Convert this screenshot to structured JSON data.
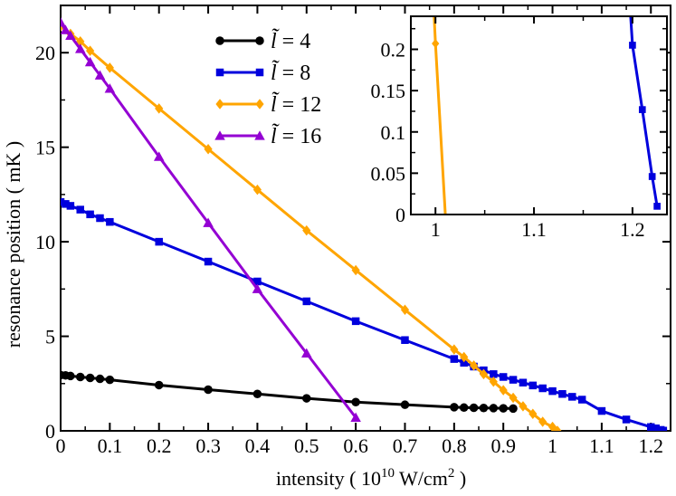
{
  "chart_data": [
    {
      "type": "line",
      "xlabel": "intensity ( 10^10 W/cm^2 )",
      "xlabel_parts": {
        "pre": "intensity ( 10",
        "exp1": "10",
        "mid": " W/cm",
        "exp2": "2",
        "post": " )"
      },
      "ylabel": "resonance position ( mK )",
      "xlim": [
        0,
        1.24
      ],
      "ylim": [
        0,
        22.5
      ],
      "xticks": [
        "0",
        "0.1",
        "0.2",
        "0.3",
        "0.4",
        "0.5",
        "0.6",
        "0.7",
        "0.8",
        "0.9",
        "1",
        "1.1",
        "1.2"
      ],
      "xtick_values": [
        0,
        0.1,
        0.2,
        0.3,
        0.4,
        0.5,
        0.6,
        0.7,
        0.8,
        0.9,
        1.0,
        1.1,
        1.2
      ],
      "yticks": [
        "0",
        "5",
        "10",
        "15",
        "20"
      ],
      "ytick_values": [
        0,
        5,
        10,
        15,
        20
      ],
      "legend": "top-center",
      "series": [
        {
          "name": "l̃ = 4",
          "legend_symbol": "l̃",
          "legend_value": "= 4",
          "color": "#000000",
          "marker": "circle",
          "x": [
            0,
            0.01,
            0.02,
            0.04,
            0.06,
            0.08,
            0.1,
            0.2,
            0.3,
            0.4,
            0.5,
            0.6,
            0.7,
            0.8,
            0.82,
            0.84,
            0.86,
            0.88,
            0.9,
            0.92
          ],
          "y": [
            2.95,
            2.93,
            2.9,
            2.85,
            2.8,
            2.75,
            2.7,
            2.42,
            2.18,
            1.95,
            1.72,
            1.52,
            1.38,
            1.25,
            1.23,
            1.22,
            1.21,
            1.2,
            1.19,
            1.18
          ]
        },
        {
          "name": "l̃ = 8",
          "legend_symbol": "l̃",
          "legend_value": "= 8",
          "color": "#0000dd",
          "marker": "square",
          "x": [
            0,
            0.01,
            0.02,
            0.04,
            0.06,
            0.08,
            0.1,
            0.2,
            0.3,
            0.4,
            0.5,
            0.6,
            0.7,
            0.8,
            0.82,
            0.84,
            0.86,
            0.88,
            0.9,
            0.92,
            0.94,
            0.96,
            0.98,
            1.0,
            1.02,
            1.04,
            1.06,
            1.1,
            1.15,
            1.2,
            1.21,
            1.22,
            1.225
          ],
          "y": [
            12.1,
            12.0,
            11.9,
            11.7,
            11.45,
            11.25,
            11.05,
            10.0,
            8.95,
            7.9,
            6.85,
            5.8,
            4.8,
            3.8,
            3.6,
            3.4,
            3.2,
            3.0,
            2.85,
            2.7,
            2.55,
            2.4,
            2.25,
            2.1,
            1.95,
            1.8,
            1.65,
            1.05,
            0.6,
            0.2,
            0.13,
            0.05,
            0.01
          ]
        },
        {
          "name": "l̃ = 12",
          "legend_symbol": "l̃",
          "legend_value": "= 12",
          "color": "#ffa500",
          "marker": "diamond",
          "x": [
            0,
            0.02,
            0.04,
            0.06,
            0.1,
            0.2,
            0.3,
            0.4,
            0.5,
            0.6,
            0.7,
            0.8,
            0.82,
            0.84,
            0.86,
            0.88,
            0.9,
            0.92,
            0.94,
            0.96,
            0.98,
            1.0,
            1.01
          ],
          "y": [
            21.4,
            21.0,
            20.6,
            20.1,
            19.2,
            17.05,
            14.9,
            12.75,
            10.6,
            8.5,
            6.4,
            4.3,
            3.9,
            3.45,
            3.0,
            2.6,
            2.15,
            1.75,
            1.3,
            0.9,
            0.48,
            0.21,
            0.0
          ]
        },
        {
          "name": "l̃ = 16",
          "legend_symbol": "l̃",
          "legend_value": "= 16",
          "color": "#9400d3",
          "marker": "triangle",
          "x": [
            0,
            0.01,
            0.02,
            0.04,
            0.06,
            0.08,
            0.1,
            0.2,
            0.3,
            0.4,
            0.5,
            0.6
          ],
          "y": [
            21.6,
            21.2,
            20.9,
            20.2,
            19.5,
            18.8,
            18.1,
            14.5,
            11.0,
            7.5,
            4.1,
            0.7
          ]
        }
      ]
    },
    {
      "type": "line",
      "role": "inset",
      "xlim": [
        0.975,
        1.235
      ],
      "ylim": [
        0,
        0.24
      ],
      "xticks": [
        "1",
        "1.1",
        "1.2"
      ],
      "xtick_values": [
        1.0,
        1.1,
        1.2
      ],
      "yticks": [
        "0",
        "0.05",
        "0.1",
        "0.15",
        "0.2"
      ],
      "ytick_values": [
        0,
        0.05,
        0.1,
        0.15,
        0.2
      ],
      "series": [
        {
          "name": "l̃ = 12",
          "color": "#ffa500",
          "marker": "diamond",
          "x": [
            0.99,
            1.0,
            1.01
          ],
          "y": [
            0.45,
            0.207,
            0.0
          ],
          "markers_at": [
            1
          ]
        },
        {
          "name": "l̃ = 8",
          "color": "#0000dd",
          "marker": "square",
          "x": [
            1.195,
            1.2,
            1.21,
            1.22,
            1.225
          ],
          "y": [
            0.3,
            0.205,
            0.127,
            0.046,
            0.01
          ],
          "markers_at": [
            1,
            2,
            3,
            4
          ]
        }
      ]
    }
  ]
}
